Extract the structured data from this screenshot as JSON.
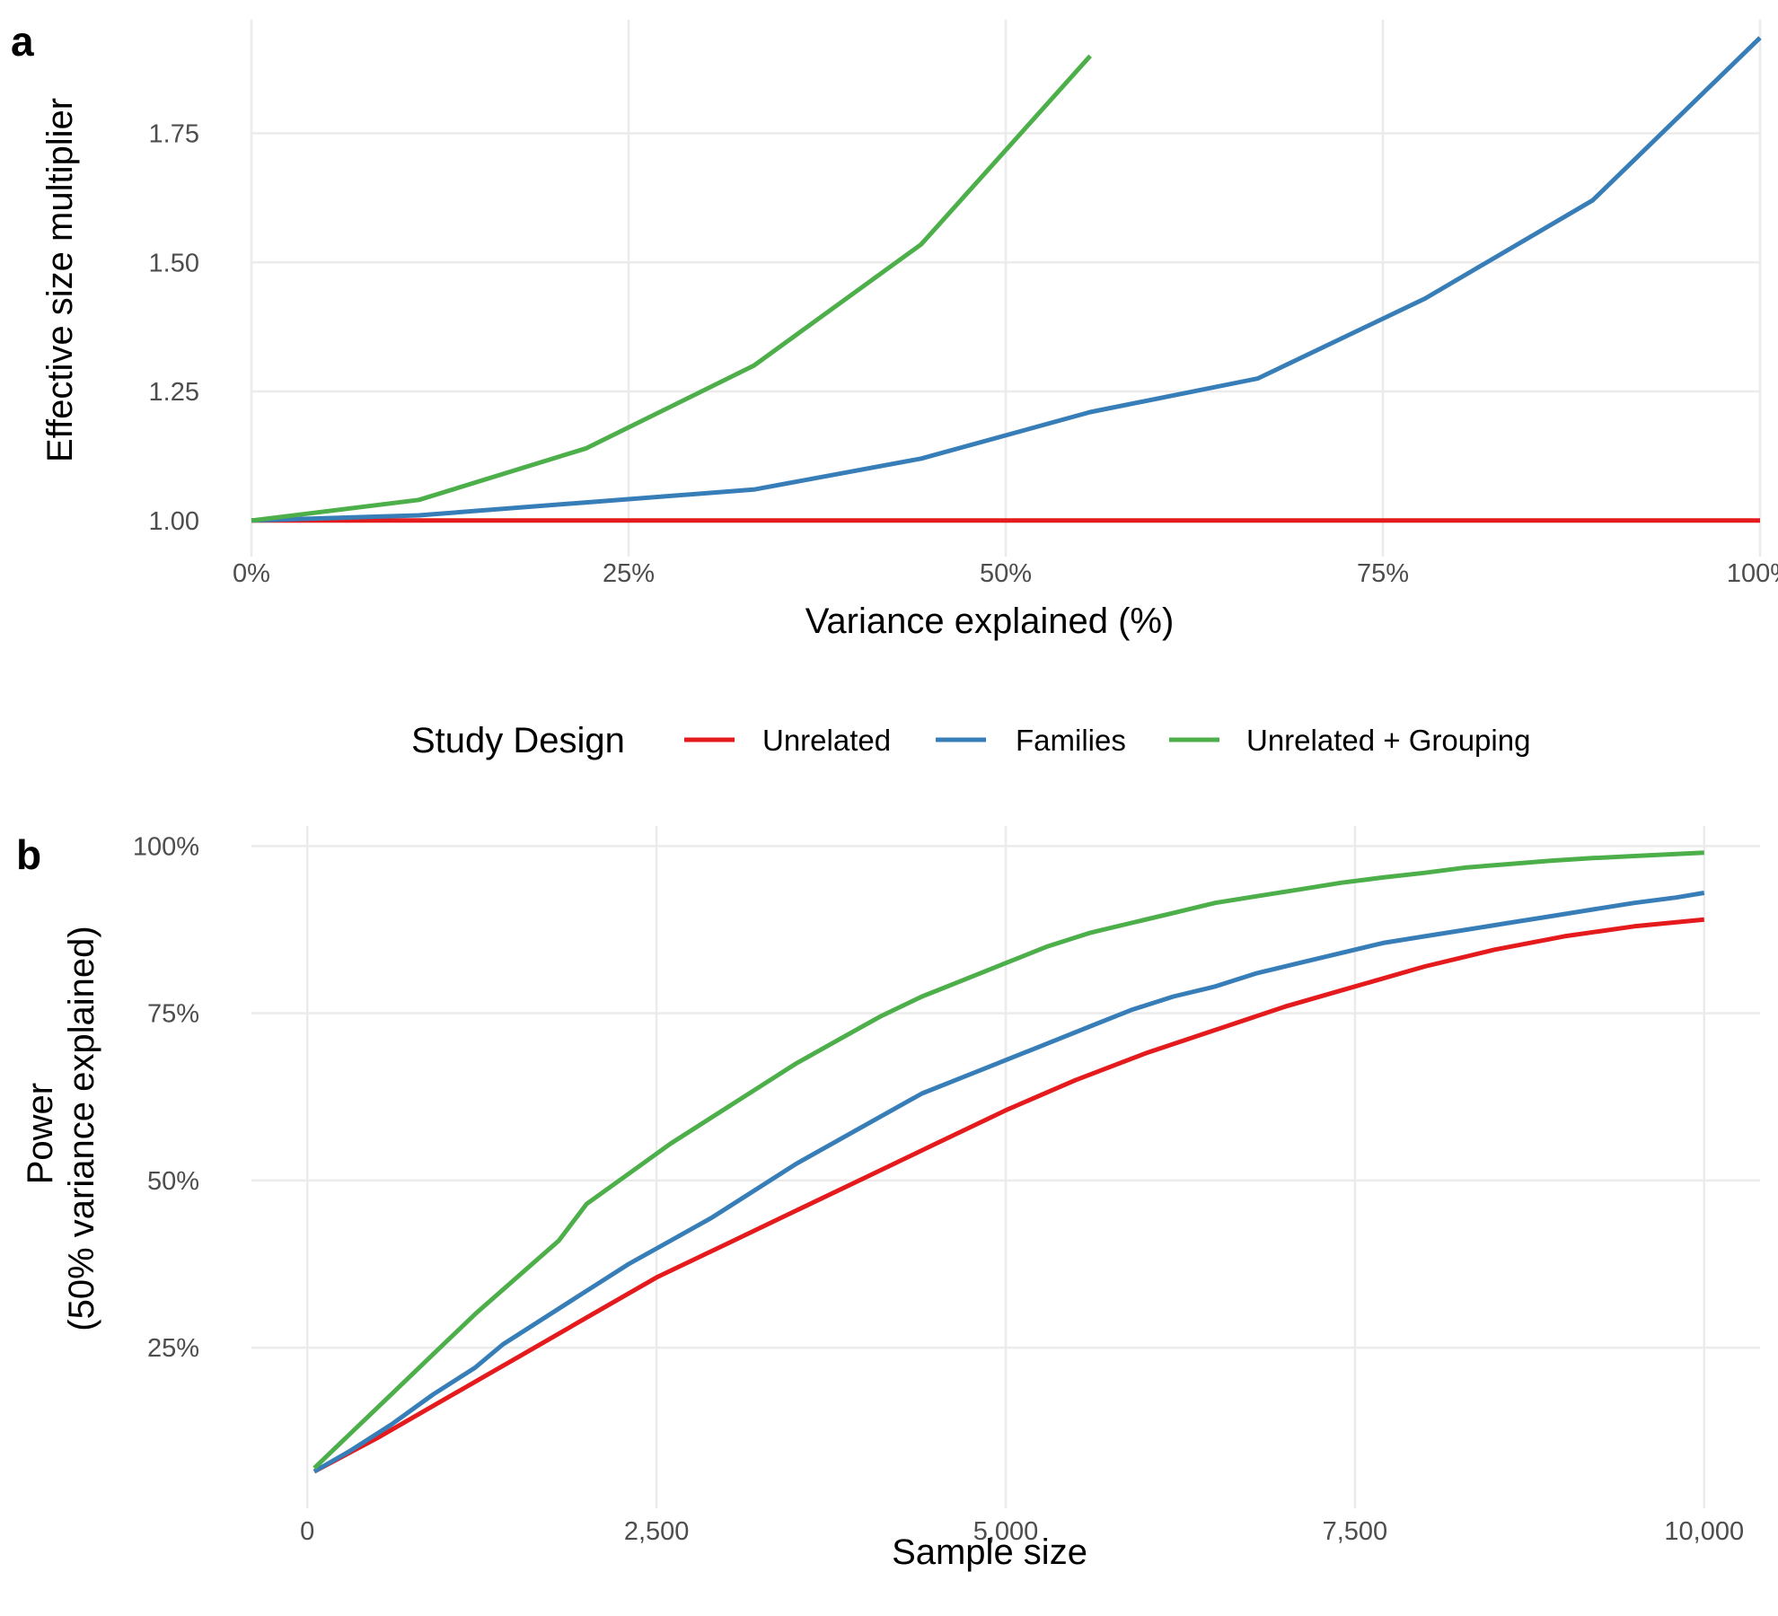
{
  "colors": {
    "Unrelated": "#e41a1c",
    "Families": "#377eb8",
    "Unrelated + Grouping": "#4daf4a"
  },
  "legend": {
    "title": "Study Design",
    "placement": "between-panels",
    "entries": [
      "Unrelated",
      "Families",
      "Unrelated + Grouping"
    ]
  },
  "chart_data": [
    {
      "panel_label": "a",
      "type": "line",
      "xlabel": "Variance explained (%)",
      "ylabel": "Effective size multiplier",
      "xlim": [
        0,
        100
      ],
      "ylim": [
        0.93,
        1.97
      ],
      "xticks": [
        0,
        25,
        50,
        75,
        100
      ],
      "xtick_labels": [
        "0%",
        "25%",
        "50%",
        "75%",
        "100%"
      ],
      "yticks": [
        1.0,
        1.25,
        1.5,
        1.75
      ],
      "ytick_labels": [
        "1.00",
        "1.25",
        "1.50",
        "1.75"
      ],
      "grid": true,
      "series": [
        {
          "name": "Unrelated",
          "x": [
            0,
            11.1,
            22.2,
            33.3,
            44.4,
            55.6,
            66.7,
            77.8,
            88.9,
            100
          ],
          "y": [
            1.0,
            1.0,
            1.0,
            1.0,
            1.0,
            1.0,
            1.0,
            1.0,
            1.0,
            1.0
          ]
        },
        {
          "name": "Families",
          "x": [
            0,
            11.1,
            22.2,
            33.3,
            44.4,
            55.6,
            66.7,
            77.8,
            88.9,
            100
          ],
          "y": [
            1.0,
            1.01,
            1.035,
            1.06,
            1.12,
            1.21,
            1.275,
            1.43,
            1.62,
            1.935
          ]
        },
        {
          "name": "Unrelated + Grouping",
          "x": [
            0,
            11.1,
            22.2,
            33.3,
            44.4,
            55.6
          ],
          "y": [
            1.0,
            1.04,
            1.14,
            1.3,
            1.535,
            1.9
          ]
        }
      ]
    },
    {
      "panel_label": "b",
      "type": "line",
      "xlabel": "Sample size",
      "ylabel": [
        "Power",
        "(50% variance explained)"
      ],
      "xlim": [
        -400,
        10400
      ],
      "ylim": [
        1,
        103
      ],
      "xticks": [
        0,
        2500,
        5000,
        7500,
        10000
      ],
      "xtick_labels": [
        "0",
        "2,500",
        "5,000",
        "7,500",
        "10,000"
      ],
      "yticks": [
        25,
        50,
        75,
        100
      ],
      "ytick_labels": [
        "25%",
        "50%",
        "75%",
        "100%"
      ],
      "grid": true,
      "series": [
        {
          "name": "Unrelated",
          "x": [
            50,
            500,
            1000,
            1500,
            2000,
            2500,
            3000,
            3500,
            4000,
            4500,
            5000,
            5500,
            6000,
            6500,
            7000,
            7500,
            8000,
            8500,
            9000,
            9500,
            10000
          ],
          "y": [
            6.5,
            11.5,
            17.5,
            23.5,
            29.5,
            35.5,
            40.5,
            45.5,
            50.5,
            55.5,
            60.5,
            65,
            69,
            72.5,
            76,
            79,
            82,
            84.5,
            86.5,
            88,
            89
          ]
        },
        {
          "name": "Families",
          "x": [
            50,
            300,
            600,
            900,
            1200,
            1400,
            1700,
            2000,
            2300,
            2600,
            2900,
            3200,
            3500,
            3800,
            4100,
            4400,
            4700,
            5000,
            5300,
            5600,
            5900,
            6200,
            6500,
            6800,
            7100,
            7400,
            7700,
            8000,
            8300,
            8600,
            8900,
            9200,
            9500,
            9800,
            10000
          ],
          "y": [
            6.5,
            9.5,
            13.5,
            18,
            22,
            25.5,
            29.5,
            33.5,
            37.5,
            41,
            44.5,
            48.5,
            52.5,
            56,
            59.5,
            63,
            65.5,
            68,
            70.5,
            73,
            75.5,
            77.5,
            79,
            81,
            82.5,
            84,
            85.5,
            86.5,
            87.5,
            88.5,
            89.5,
            90.5,
            91.5,
            92.3,
            93
          ]
        },
        {
          "name": "Unrelated + Grouping",
          "x": [
            50,
            300,
            600,
            900,
            1200,
            1500,
            1800,
            2000,
            2300,
            2600,
            2900,
            3200,
            3500,
            3800,
            4100,
            4400,
            4700,
            5000,
            5300,
            5600,
            5900,
            6200,
            6500,
            6800,
            7100,
            7400,
            7700,
            8000,
            8300,
            8600,
            8900,
            9200,
            9500,
            9800,
            10000
          ],
          "y": [
            7,
            12,
            18,
            24,
            30,
            35.5,
            41,
            46.5,
            51,
            55.5,
            59.5,
            63.5,
            67.5,
            71,
            74.5,
            77.5,
            80,
            82.5,
            85,
            87,
            88.5,
            90,
            91.5,
            92.5,
            93.5,
            94.5,
            95.3,
            96,
            96.8,
            97.3,
            97.8,
            98.2,
            98.5,
            98.8,
            99
          ]
        }
      ]
    }
  ]
}
